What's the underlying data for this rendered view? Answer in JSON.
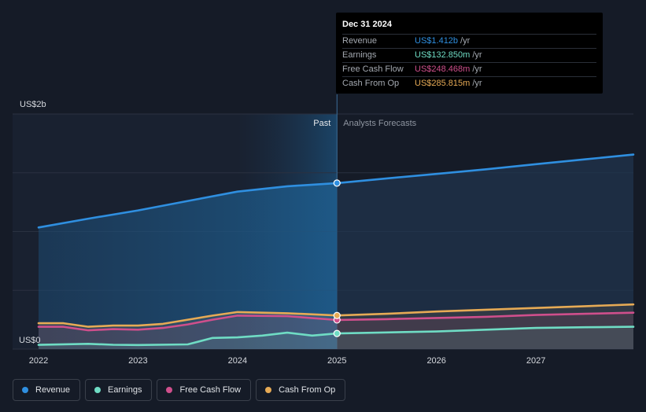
{
  "chart_data": {
    "type": "line",
    "y_axis": {
      "top_label": "US$2b",
      "bottom_label": "US$0",
      "ylim": [
        0,
        2000
      ]
    },
    "x_axis": {
      "ticks": [
        "2022",
        "2023",
        "2024",
        "2025",
        "2026",
        "2027"
      ],
      "range": [
        2022.0,
        2027.98
      ]
    },
    "divider_x": 2025.0,
    "region_labels": {
      "past": "Past",
      "forecast": "Analysts Forecasts"
    },
    "series": [
      {
        "name": "Revenue",
        "color": "#2f8fe0",
        "points": [
          [
            2022.0,
            1035
          ],
          [
            2022.5,
            1110
          ],
          [
            2023.0,
            1180
          ],
          [
            2023.5,
            1260
          ],
          [
            2024.0,
            1340
          ],
          [
            2024.5,
            1385
          ],
          [
            2025.0,
            1412
          ],
          [
            2025.5,
            1452
          ],
          [
            2026.0,
            1490
          ],
          [
            2026.5,
            1530
          ],
          [
            2027.0,
            1573
          ],
          [
            2027.5,
            1615
          ],
          [
            2027.98,
            1655
          ]
        ]
      },
      {
        "name": "Earnings",
        "color": "#6fdcc4",
        "points": [
          [
            2022.0,
            36
          ],
          [
            2022.5,
            45
          ],
          [
            2022.75,
            37
          ],
          [
            2023.0,
            35
          ],
          [
            2023.5,
            40
          ],
          [
            2023.75,
            95
          ],
          [
            2024.0,
            100
          ],
          [
            2024.25,
            115
          ],
          [
            2024.5,
            140
          ],
          [
            2024.75,
            115
          ],
          [
            2025.0,
            133
          ],
          [
            2025.5,
            142
          ],
          [
            2026.0,
            150
          ],
          [
            2026.5,
            165
          ],
          [
            2027.0,
            180
          ],
          [
            2027.5,
            186
          ],
          [
            2027.98,
            190
          ]
        ]
      },
      {
        "name": "Free Cash Flow",
        "color": "#cf4f8c",
        "points": [
          [
            2022.0,
            190
          ],
          [
            2022.25,
            190
          ],
          [
            2022.5,
            160
          ],
          [
            2022.75,
            170
          ],
          [
            2023.0,
            165
          ],
          [
            2023.25,
            180
          ],
          [
            2023.5,
            210
          ],
          [
            2023.75,
            250
          ],
          [
            2024.0,
            285
          ],
          [
            2024.5,
            280
          ],
          [
            2025.0,
            248
          ],
          [
            2025.5,
            255
          ],
          [
            2026.0,
            265
          ],
          [
            2026.5,
            275
          ],
          [
            2027.0,
            290
          ],
          [
            2027.5,
            300
          ],
          [
            2027.98,
            310
          ]
        ]
      },
      {
        "name": "Cash From Op",
        "color": "#e6aa55",
        "points": [
          [
            2022.0,
            220
          ],
          [
            2022.25,
            220
          ],
          [
            2022.5,
            190
          ],
          [
            2022.75,
            200
          ],
          [
            2023.0,
            200
          ],
          [
            2023.25,
            215
          ],
          [
            2023.5,
            250
          ],
          [
            2023.75,
            285
          ],
          [
            2024.0,
            315
          ],
          [
            2024.5,
            305
          ],
          [
            2025.0,
            286
          ],
          [
            2025.5,
            300
          ],
          [
            2026.0,
            320
          ],
          [
            2026.5,
            335
          ],
          [
            2027.0,
            350
          ],
          [
            2027.5,
            365
          ],
          [
            2027.98,
            380
          ]
        ]
      }
    ]
  },
  "tooltip": {
    "date": "Dec 31 2024",
    "unit": "/yr",
    "rows": [
      {
        "label": "Revenue",
        "value": "US$1.412b",
        "color": "#2f8fe0"
      },
      {
        "label": "Earnings",
        "value": "US$132.850m",
        "color": "#6fdcc4"
      },
      {
        "label": "Free Cash Flow",
        "value": "US$248.468m",
        "color": "#cf4f8c"
      },
      {
        "label": "Cash From Op",
        "value": "US$285.815m",
        "color": "#e6aa55"
      }
    ]
  },
  "legend": [
    {
      "label": "Revenue",
      "color": "#2f8fe0"
    },
    {
      "label": "Earnings",
      "color": "#6fdcc4"
    },
    {
      "label": "Free Cash Flow",
      "color": "#cf4f8c"
    },
    {
      "label": "Cash From Op",
      "color": "#e6aa55"
    }
  ]
}
